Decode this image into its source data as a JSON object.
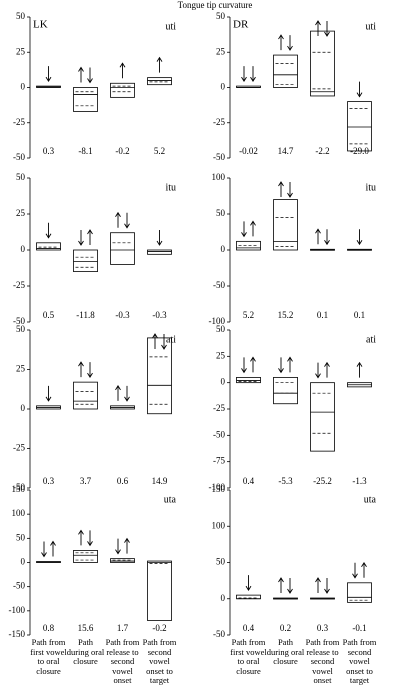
{
  "title": "Tongue tip curvature",
  "chart_data": [
    {
      "type": "box",
      "speaker": "LK",
      "label": "uti",
      "ylim": [
        -50,
        50
      ],
      "yticks": [
        -50,
        -25,
        0,
        25,
        50
      ],
      "low": [
        0,
        -17,
        -7,
        2
      ],
      "high": [
        1,
        0,
        3,
        7
      ],
      "median": [
        0.3,
        -5,
        0,
        5
      ],
      "dashed": [
        [],
        [
          -3,
          -13
        ],
        [
          -3,
          1
        ],
        [
          4
        ]
      ],
      "arrows": [
        [
          "down"
        ],
        [
          "up",
          "down"
        ],
        [
          "up"
        ],
        [
          "up"
        ]
      ],
      "values": [
        0.3,
        -8.1,
        -0.2,
        5.2
      ]
    },
    {
      "type": "box",
      "speaker": "DR",
      "label": "uti",
      "ylim": [
        -50,
        50
      ],
      "yticks": [
        -50,
        -25,
        0,
        25,
        50
      ],
      "low": [
        0,
        0,
        -6,
        -45
      ],
      "high": [
        1,
        23,
        40,
        -10
      ],
      "median": [
        0,
        9,
        -3,
        -28
      ],
      "dashed": [
        [],
        [
          17,
          2
        ],
        [
          25,
          -1
        ],
        [
          -15,
          -40
        ]
      ],
      "arrows": [
        [
          "down",
          "down"
        ],
        [
          "up",
          "down"
        ],
        [
          "up",
          "down"
        ],
        [
          "down"
        ]
      ],
      "values": [
        -0.02,
        14.7,
        -2.2,
        -29.0
      ],
      "value_labels": [
        "-0.02",
        "14.7",
        "-2.2",
        "-29.0"
      ]
    },
    {
      "type": "box",
      "speaker": null,
      "label": "itu",
      "ylim": [
        -50,
        50
      ],
      "yticks": [
        -50,
        -25,
        0,
        25,
        50
      ],
      "low": [
        0,
        -15,
        -10,
        -3
      ],
      "high": [
        5,
        0,
        12,
        0
      ],
      "median": [
        1,
        -8,
        0,
        -1
      ],
      "dashed": [
        [
          2
        ],
        [
          -5,
          -12
        ],
        [
          5
        ],
        []
      ],
      "arrows": [
        [
          "down"
        ],
        [
          "down",
          "up"
        ],
        [
          "up",
          "down"
        ],
        [
          "down"
        ]
      ],
      "values": [
        0.5,
        -11.8,
        -0.3,
        -0.3
      ]
    },
    {
      "type": "box",
      "speaker": null,
      "label": "itu",
      "ylim": [
        -100,
        100
      ],
      "yticks": [
        -100,
        -50,
        0,
        50,
        100
      ],
      "low": [
        0,
        0,
        0,
        0
      ],
      "high": [
        12,
        70,
        1,
        1
      ],
      "median": [
        3,
        12,
        0,
        0
      ],
      "dashed": [
        [
          6
        ],
        [
          45,
          5
        ],
        [],
        []
      ],
      "arrows": [
        [
          "down",
          "up"
        ],
        [
          "up",
          "down"
        ],
        [
          "up",
          "down"
        ],
        [
          "down"
        ]
      ],
      "values": [
        5.2,
        15.2,
        0.1,
        0.1
      ]
    },
    {
      "type": "box",
      "speaker": null,
      "label": "ati",
      "ylim": [
        -50,
        50
      ],
      "yticks": [
        -50,
        -25,
        0,
        25,
        50
      ],
      "low": [
        0,
        0,
        0,
        -3
      ],
      "high": [
        2,
        17,
        2,
        45
      ],
      "median": [
        1,
        5,
        1,
        15
      ],
      "dashed": [
        [],
        [
          11,
          3
        ],
        [],
        [
          33,
          3
        ]
      ],
      "arrows": [
        [
          "down"
        ],
        [
          "up",
          "down"
        ],
        [
          "up",
          "down"
        ],
        [
          "up",
          "down"
        ]
      ],
      "values": [
        0.3,
        3.7,
        0.6,
        14.9
      ]
    },
    {
      "type": "box",
      "speaker": null,
      "label": "ati",
      "ylim": [
        -100,
        50
      ],
      "yticks": [
        -100,
        -75,
        -50,
        -25,
        0,
        25,
        50
      ],
      "low": [
        0,
        -20,
        -65,
        -4
      ],
      "high": [
        5,
        5,
        0,
        0
      ],
      "median": [
        2,
        -10,
        -28,
        -2
      ],
      "dashed": [
        [
          1
        ],
        [
          0,
          -10
        ],
        [
          -10,
          -48
        ],
        []
      ],
      "arrows": [
        [
          "down",
          "up"
        ],
        [
          "down",
          "up"
        ],
        [
          "down",
          "up"
        ],
        [
          "up"
        ]
      ],
      "values": [
        0.4,
        -5.3,
        -25.2,
        -1.3
      ]
    },
    {
      "type": "box",
      "speaker": null,
      "label": "uta",
      "ylim": [
        -150,
        150
      ],
      "yticks": [
        -150,
        -100,
        -50,
        0,
        50,
        100,
        150
      ],
      "low": [
        0,
        0,
        0,
        -120
      ],
      "high": [
        2,
        25,
        8,
        3
      ],
      "median": [
        1,
        15,
        3,
        0
      ],
      "dashed": [
        [],
        [
          20,
          5
        ],
        [
          5
        ],
        [
          -2
        ]
      ],
      "arrows": [
        [
          "down",
          "up"
        ],
        [
          "up",
          "down"
        ],
        [
          "down",
          "up"
        ],
        []
      ],
      "values": [
        0.8,
        15.6,
        1.7,
        -0.2
      ],
      "categories": [
        "Path from first vowel to oral closure",
        "Path during oral closure",
        "Path from release to second vowel onset",
        "Path from second vowel onset to target"
      ]
    },
    {
      "type": "box",
      "speaker": null,
      "label": "uta",
      "ylim": [
        -50,
        150
      ],
      "yticks": [
        -50,
        0,
        50,
        100,
        150
      ],
      "low": [
        0,
        0,
        0,
        -5
      ],
      "high": [
        5,
        1,
        1,
        22
      ],
      "median": [
        0,
        0,
        0,
        2
      ],
      "dashed": [
        [
          1
        ],
        [],
        [],
        [
          -2
        ]
      ],
      "arrows": [
        [
          "down"
        ],
        [
          "up",
          "down"
        ],
        [
          "up",
          "down"
        ],
        [
          "down",
          "up"
        ]
      ],
      "values": [
        0.4,
        0.2,
        0.3,
        -0.1
      ],
      "categories": [
        "Path from first vowel to oral closure",
        "Path during oral closure",
        "Path from release to second vowel onset",
        "Path from second vowel onset to target"
      ]
    }
  ]
}
